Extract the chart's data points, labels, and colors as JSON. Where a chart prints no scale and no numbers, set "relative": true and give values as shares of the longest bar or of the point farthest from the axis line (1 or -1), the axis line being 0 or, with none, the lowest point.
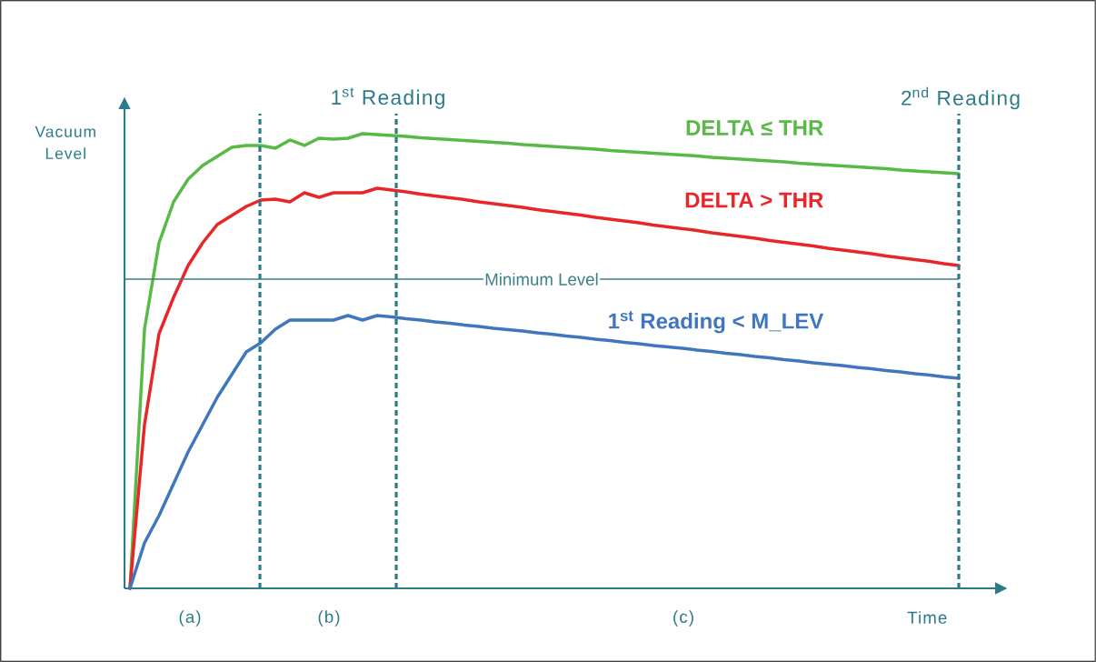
{
  "chart_data": {
    "type": "line",
    "relative": true,
    "categories": [
      null,
      null,
      null,
      null,
      null,
      null,
      null,
      null,
      null,
      null,
      null,
      null,
      null,
      null,
      null,
      null,
      null,
      null,
      null,
      null,
      null,
      null,
      null,
      null,
      null,
      null,
      null,
      null,
      null,
      null,
      null,
      null,
      null,
      null,
      null,
      null,
      null,
      null,
      null,
      null,
      null,
      null,
      null,
      null,
      null,
      null,
      null,
      null,
      null,
      null,
      null,
      null,
      null,
      null,
      null,
      null,
      null,
      null
    ],
    "ylabel": "Vacuum Level",
    "xlabel": "Time",
    "series": [
      {
        "name": "DELTA ≤ THR",
        "color": "#58b947",
        "values": [
          0,
          0.57,
          0.76,
          0.85,
          0.9,
          0.93,
          0.95,
          0.97,
          0.974,
          0.974,
          0.968,
          0.986,
          0.974,
          0.99,
          0.988,
          0.99,
          1.0,
          0.998,
          0.996,
          0.994,
          0.991,
          0.989,
          0.987,
          0.985,
          0.983,
          0.981,
          0.979,
          0.976,
          0.974,
          0.972,
          0.97,
          0.968,
          0.966,
          0.963,
          0.961,
          0.959,
          0.957,
          0.955,
          0.953,
          0.951,
          0.948,
          0.946,
          0.944,
          0.942,
          0.94,
          0.938,
          0.935,
          0.933,
          0.931,
          0.929,
          0.927,
          0.925,
          0.923,
          0.92,
          0.918,
          0.916,
          0.914,
          0.912
        ]
      },
      {
        "name": "DELTA > THR",
        "color": "#e8262a",
        "values": [
          0,
          0.36,
          0.56,
          0.64,
          0.71,
          0.76,
          0.8,
          0.82,
          0.84,
          0.854,
          0.856,
          0.85,
          0.87,
          0.86,
          0.87,
          0.87,
          0.87,
          0.88,
          0.876,
          0.872,
          0.867,
          0.863,
          0.859,
          0.855,
          0.85,
          0.846,
          0.842,
          0.838,
          0.833,
          0.829,
          0.825,
          0.821,
          0.816,
          0.812,
          0.808,
          0.804,
          0.799,
          0.795,
          0.791,
          0.787,
          0.782,
          0.778,
          0.774,
          0.77,
          0.765,
          0.761,
          0.757,
          0.753,
          0.748,
          0.744,
          0.74,
          0.736,
          0.731,
          0.727,
          0.723,
          0.719,
          0.714,
          0.71
        ]
      },
      {
        "name": "1$^{st}$ Reading < M_LEV",
        "color": "#3f76bf",
        "values": [
          0,
          0.1,
          0.16,
          0.23,
          0.3,
          0.36,
          0.42,
          0.47,
          0.52,
          0.54,
          0.57,
          0.59,
          0.59,
          0.59,
          0.59,
          0.6,
          0.59,
          0.6,
          0.597,
          0.593,
          0.59,
          0.586,
          0.583,
          0.579,
          0.576,
          0.572,
          0.569,
          0.566,
          0.562,
          0.559,
          0.555,
          0.552,
          0.548,
          0.545,
          0.541,
          0.538,
          0.534,
          0.531,
          0.528,
          0.524,
          0.521,
          0.517,
          0.514,
          0.51,
          0.507,
          0.503,
          0.5,
          0.496,
          0.493,
          0.49,
          0.486,
          0.483,
          0.479,
          0.476,
          0.472,
          0.469,
          0.465,
          0.462
        ]
      }
    ],
    "ref_lines": [
      {
        "axis": "y",
        "value": 0.68,
        "label": "Minimum Level",
        "color": "#3f7f89",
        "line_style": "solid"
      }
    ],
    "annotations": [
      "1$^{st}$ Reading",
      "2$^{nd}$ Reading",
      "(a)",
      "(b)",
      "(c)"
    ]
  }
}
